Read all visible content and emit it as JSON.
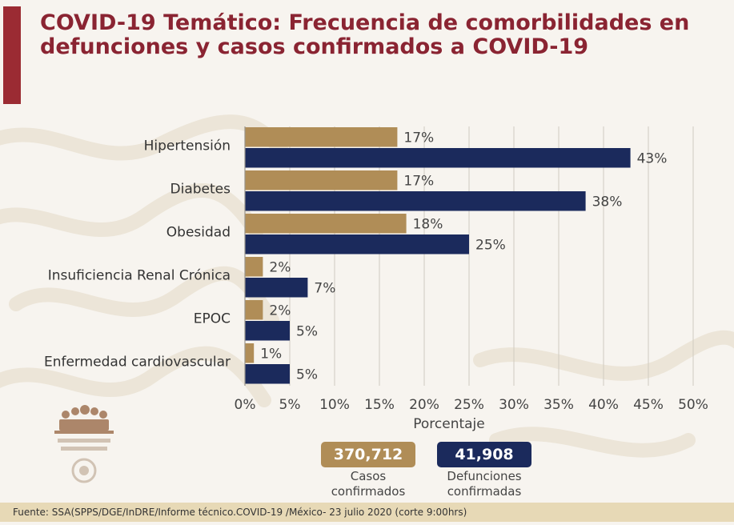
{
  "title": "COVID-19 Temático: Frecuencia de comorbilidades en defunciones y casos confirmados a COVID-19",
  "colors": {
    "casos": "#b08d57",
    "defunciones": "#1b2a5c",
    "title": "#8a2432",
    "accent_bar": "#9b2b33",
    "footer_bg": "#e7d9b6"
  },
  "chart_data": {
    "type": "bar",
    "orientation": "horizontal",
    "categories": [
      "Hipertensión",
      "Diabetes",
      "Obesidad",
      "Insuficiencia Renal Crónica",
      "EPOC",
      "Enfermedad cardiovascular"
    ],
    "series": [
      {
        "name": "Casos confirmados",
        "values": [
          17,
          17,
          18,
          2,
          2,
          1
        ],
        "labels": [
          "17%",
          "17%",
          "18%",
          "2%",
          "2%",
          "1%"
        ]
      },
      {
        "name": "Defunciones confirmadas",
        "values": [
          43,
          38,
          25,
          7,
          5,
          5
        ],
        "labels": [
          "43%",
          "38%",
          "25%",
          "7%",
          "5%",
          "5%"
        ]
      }
    ],
    "xlabel": "Porcentaje",
    "xlim": [
      0,
      50
    ],
    "xticks": [
      "0%",
      "5%",
      "10%",
      "15%",
      "20%",
      "25%",
      "30%",
      "35%",
      "40%",
      "45%",
      "50%"
    ],
    "grid": true,
    "legend_placement": "bottom-center"
  },
  "legend": {
    "casos": {
      "value": "370,712",
      "label_line1": "Casos",
      "label_line2": "confirmados"
    },
    "defunciones": {
      "value": "41,908",
      "label_line1": "Defunciones",
      "label_line2": "confirmadas"
    }
  },
  "footer": "Fuente: SSA(SPPS/DGE/InDRE/Informe técnico.COVID-19 /México- 23 julio 2020 (corte 9:00hrs)"
}
